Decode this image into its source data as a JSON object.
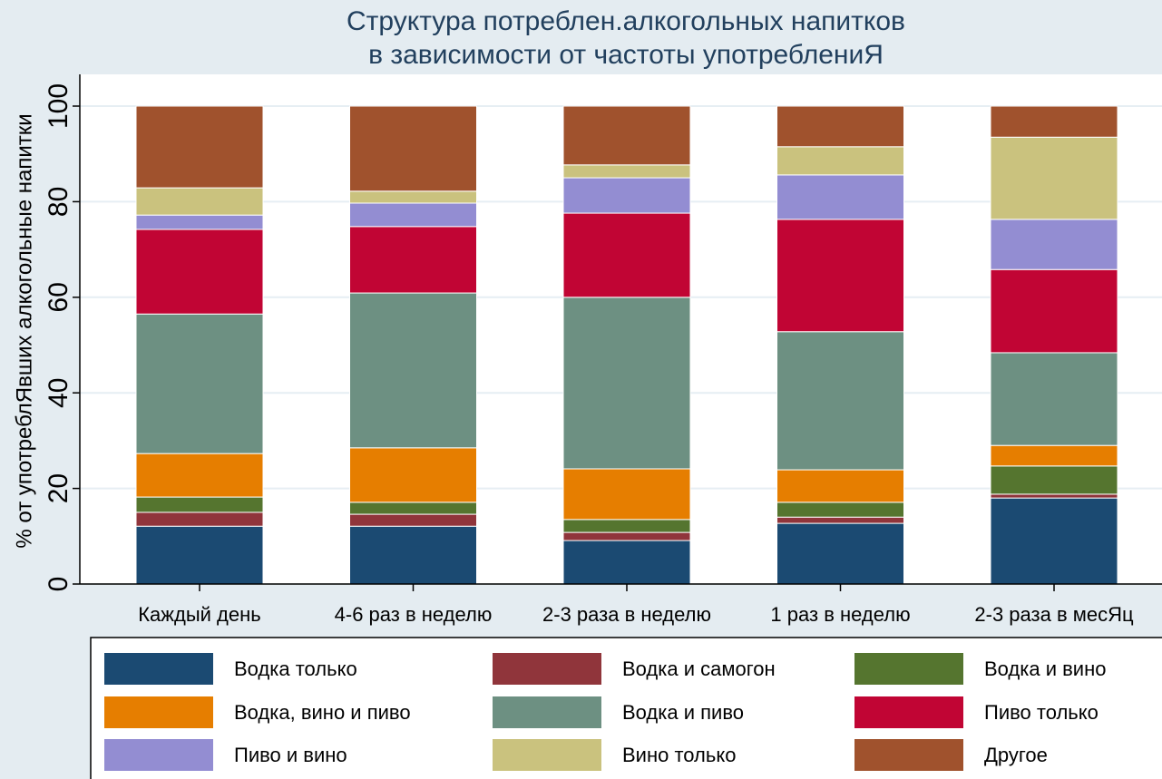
{
  "chart_data": {
    "type": "stacked_bar",
    "title": [
      "Структура потреблен.алкогольных напитков",
      "в зависимости от частоты употреблениЯ"
    ],
    "y_label": "% от употреблЯвших алкогольные напитки",
    "categories": [
      "Каждый день",
      "4-6 раз в неделю",
      "2-3 раза в неделю",
      "1 раз в неделю",
      "2-3 раза в месЯц"
    ],
    "ylim": [
      0,
      100
    ],
    "yticks": [
      0,
      20,
      40,
      60,
      80,
      100
    ],
    "grid": true,
    "series": [
      {
        "name": "Водка только",
        "color": "#1b4a72",
        "values": [
          12.1,
          12.1,
          9.1,
          12.7,
          18.0
        ]
      },
      {
        "name": "Водка и самогон",
        "color": "#90353b",
        "values": [
          2.9,
          2.5,
          1.7,
          1.3,
          0.8
        ]
      },
      {
        "name": "Водка и вино",
        "color": "#55752f",
        "values": [
          3.2,
          2.5,
          2.7,
          3.1,
          5.9
        ]
      },
      {
        "name": "Водка, вино и пиво",
        "color": "#e67e00",
        "values": [
          9.1,
          11.4,
          10.6,
          6.8,
          4.3
        ]
      },
      {
        "name": "Водка и пиво",
        "color": "#6d9082",
        "values": [
          29.2,
          32.4,
          35.9,
          28.9,
          19.4
        ]
      },
      {
        "name": "Пиво только",
        "color": "#c10534",
        "values": [
          17.7,
          13.9,
          17.6,
          23.5,
          17.4
        ]
      },
      {
        "name": "Пиво и вино",
        "color": "#938dd2",
        "values": [
          3.0,
          4.9,
          7.4,
          9.3,
          10.5
        ]
      },
      {
        "name": "Вино только",
        "color": "#cac27e",
        "values": [
          5.7,
          2.5,
          2.7,
          5.9,
          17.2
        ]
      },
      {
        "name": "Другое",
        "color": "#a0522d",
        "values": [
          17.1,
          17.8,
          12.3,
          8.5,
          6.5
        ]
      }
    ]
  }
}
